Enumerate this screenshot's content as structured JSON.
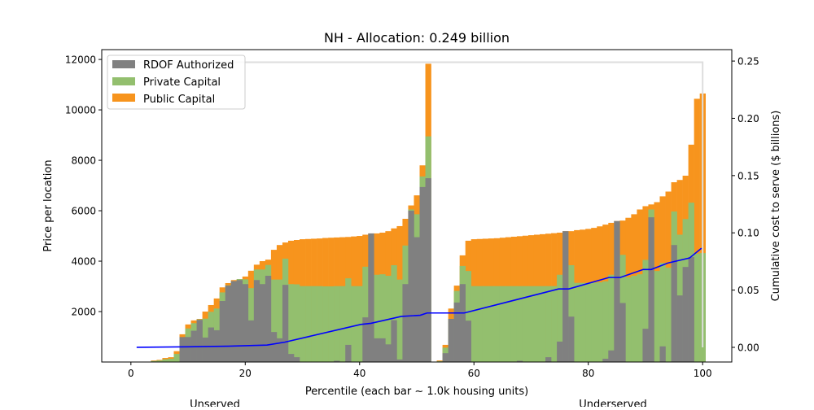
{
  "chart_data": {
    "type": "bar",
    "title": "NH - Allocation: 0.249 billion",
    "xlabel": "Percentile (each bar ~ 1.0k housing units)",
    "ylabel": "Price per location",
    "y2label": "Cumulative cost to serve ($ billions)",
    "xlim": [
      -5.1,
      105.1
    ],
    "ylim": [
      0,
      12390
    ],
    "y2lim": [
      -0.0128,
      0.26
    ],
    "xticks": [
      "0",
      "20",
      "40",
      "60",
      "80",
      "100"
    ],
    "yticks": [
      "2000",
      "4000",
      "6000",
      "8000",
      "10000",
      "12000"
    ],
    "y2ticks": [
      "0.00",
      "0.05",
      "0.10",
      "0.15",
      "0.20",
      "0.25"
    ],
    "sublabels": [
      "Unserved",
      "Underserved"
    ],
    "legend": {
      "placement": "top-left",
      "entries": [
        "RDOF Authorized",
        "Private Capital",
        "Public Capital"
      ]
    },
    "colors": {
      "rdof": "#808080",
      "private": "#93bf6e",
      "public": "#f7941d",
      "cumulative": "#0000ff",
      "allocation": "#dddddd"
    },
    "x": [
      1,
      2,
      3,
      4,
      5,
      6,
      7,
      8,
      9,
      10,
      11,
      12,
      13,
      14,
      15,
      16,
      17,
      18,
      19,
      20,
      21,
      22,
      23,
      24,
      25,
      26,
      27,
      28,
      29,
      30,
      31,
      32,
      33,
      34,
      35,
      36,
      37,
      38,
      39,
      40,
      41,
      42,
      43,
      44,
      45,
      46,
      47,
      48,
      49,
      50,
      51,
      52,
      53,
      54,
      55,
      56,
      57,
      58,
      59,
      60,
      61,
      62,
      63,
      64,
      65,
      66,
      67,
      68,
      69,
      70,
      71,
      72,
      73,
      74,
      75,
      76,
      77,
      78,
      79,
      80,
      81,
      82,
      83,
      84,
      85,
      86,
      87,
      88,
      89,
      90,
      91,
      92,
      93,
      94,
      95,
      96,
      97,
      98,
      99,
      100
    ],
    "series": [
      {
        "name": "Public Capital",
        "values": [
          0,
          0,
          0,
          60,
          85,
          160,
          190,
          430,
          1100,
          1490,
          1650,
          1710,
          2000,
          2260,
          2520,
          2960,
          3130,
          3250,
          3290,
          3390,
          3620,
          3860,
          4000,
          4060,
          4450,
          4640,
          4740,
          4810,
          4840,
          4870,
          4880,
          4890,
          4900,
          4920,
          4930,
          4940,
          4950,
          4960,
          4980,
          5000,
          5050,
          5100,
          5100,
          5130,
          5190,
          5300,
          5390,
          5680,
          6210,
          6610,
          7800,
          11830,
          0,
          60,
          680,
          2120,
          3030,
          4230,
          4810,
          4870,
          4880,
          4890,
          4900,
          4910,
          4930,
          4950,
          4970,
          4990,
          5010,
          5030,
          5050,
          5070,
          5090,
          5110,
          5130,
          5190,
          5190,
          5230,
          5250,
          5280,
          5320,
          5380,
          5450,
          5520,
          5590,
          5610,
          5720,
          5860,
          6050,
          6180,
          6250,
          6340,
          6570,
          6760,
          7130,
          7220,
          7390,
          8620,
          10440,
          10650
        ]
      },
      {
        "name": "Private Capital",
        "values": [
          0,
          0,
          0,
          40,
          60,
          110,
          130,
          320,
          930,
          1330,
          1540,
          1690,
          1720,
          1990,
          2120,
          2760,
          3040,
          3210,
          3290,
          3280,
          2930,
          3670,
          3670,
          3850,
          3270,
          3270,
          4100,
          3090,
          3080,
          3010,
          3010,
          3010,
          3010,
          3000,
          3000,
          3010,
          3010,
          3320,
          3010,
          3010,
          3780,
          3100,
          3460,
          3480,
          3420,
          3840,
          3270,
          4620,
          6050,
          5860,
          7360,
          8950,
          0,
          30,
          570,
          1710,
          2820,
          3810,
          3610,
          3010,
          3010,
          3010,
          3010,
          3010,
          3010,
          3010,
          3010,
          3010,
          3010,
          3010,
          3010,
          3010,
          3010,
          3010,
          3460,
          3100,
          3840,
          3140,
          3140,
          3140,
          3150,
          3160,
          3200,
          3460,
          3300,
          4250,
          3360,
          3420,
          3480,
          4050,
          6050,
          3610,
          3930,
          3740,
          5970,
          5050,
          5670,
          6320,
          4300,
          4320
        ]
      },
      {
        "name": "RDOF Authorized",
        "values": [
          0,
          0,
          0,
          0,
          0,
          0,
          0,
          0,
          990,
          990,
          1240,
          1670,
          970,
          1370,
          1260,
          2420,
          3030,
          3210,
          3250,
          3090,
          1650,
          3250,
          3090,
          3420,
          1190,
          940,
          3060,
          320,
          190,
          0,
          0,
          0,
          0,
          0,
          0,
          50,
          0,
          680,
          0,
          0,
          1770,
          5100,
          940,
          940,
          700,
          1660,
          100,
          3090,
          6000,
          4950,
          6940,
          7290,
          0,
          0,
          350,
          1710,
          2360,
          3090,
          1640,
          0,
          0,
          0,
          0,
          0,
          0,
          0,
          0,
          50,
          0,
          0,
          0,
          0,
          190,
          0,
          810,
          5190,
          1800,
          0,
          0,
          0,
          0,
          0,
          130,
          460,
          5590,
          2340,
          0,
          0,
          0,
          1320,
          5740,
          0,
          620,
          0,
          4640,
          2640,
          3770,
          4160,
          0,
          0
        ]
      }
    ],
    "cumulative": {
      "name": "Cumulative cost to serve",
      "x": [
        1,
        10,
        17,
        23.8,
        26.9,
        40.2,
        42,
        47.3,
        50.6,
        51.8,
        58.3,
        74.8,
        76.6,
        83.6,
        85.6,
        89.6,
        91,
        93.9,
        97.7,
        99.8
      ],
      "y": [
        0.0,
        0.0005,
        0.001,
        0.002,
        0.0045,
        0.02,
        0.021,
        0.027,
        0.028,
        0.03,
        0.03,
        0.051,
        0.051,
        0.061,
        0.061,
        0.068,
        0.068,
        0.0736,
        0.078,
        0.0866
      ]
    },
    "allocation_line": {
      "x": [
        1,
        100,
        100
      ],
      "y": [
        0.249,
        0.249,
        0
      ]
    }
  }
}
